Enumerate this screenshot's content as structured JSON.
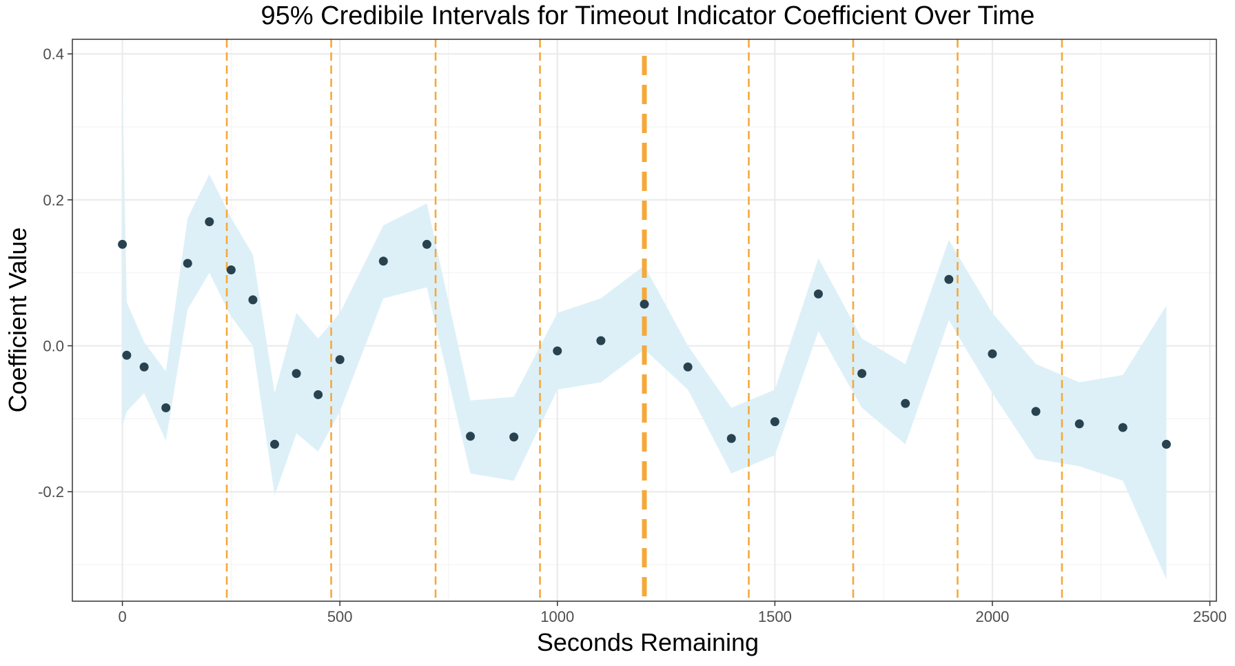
{
  "chart_data": {
    "type": "scatter",
    "title": "95% Credibile Intervals for Timeout Indicator Coefficient Over Time",
    "xlabel": "Seconds Remaining",
    "ylabel": "Coefficient Value",
    "xlim": [
      -115,
      2515
    ],
    "ylim": [
      -0.35,
      0.42
    ],
    "x_ticks": [
      0,
      500,
      1000,
      1500,
      2000,
      2500
    ],
    "x_tick_labels": [
      "0",
      "500",
      "1000",
      "1500",
      "2000",
      "2500"
    ],
    "x_minor_ticks": [
      250,
      750,
      1250,
      1750,
      2250
    ],
    "y_ticks": [
      -0.2,
      0.0,
      0.2,
      0.4
    ],
    "y_tick_labels": [
      "-0.2",
      "0.0",
      "0.2",
      "0.4"
    ],
    "y_minor_ticks": [
      -0.3,
      -0.1,
      0.1,
      0.3
    ],
    "grid": true,
    "interval": {
      "x": [
        0,
        10,
        50,
        100,
        150,
        200,
        250,
        300,
        350,
        400,
        450,
        500,
        600,
        700,
        800,
        900,
        1000,
        1100,
        1200,
        1300,
        1400,
        1500,
        1600,
        1700,
        1800,
        1900,
        2000,
        2100,
        2200,
        2300,
        2400
      ],
      "lower": [
        -0.11,
        -0.09,
        -0.065,
        -0.13,
        0.05,
        0.1,
        0.04,
        0.0,
        -0.205,
        -0.12,
        -0.145,
        -0.09,
        0.065,
        0.08,
        -0.175,
        -0.185,
        -0.06,
        -0.05,
        -0.005,
        -0.06,
        -0.175,
        -0.15,
        0.02,
        -0.085,
        -0.135,
        0.035,
        -0.065,
        -0.155,
        -0.165,
        -0.185,
        -0.32
      ],
      "upper": [
        0.365,
        0.06,
        0.005,
        -0.035,
        0.175,
        0.235,
        0.175,
        0.125,
        -0.065,
        0.045,
        0.01,
        0.045,
        0.165,
        0.195,
        -0.075,
        -0.07,
        0.045,
        0.065,
        0.11,
        0.0,
        -0.085,
        -0.06,
        0.12,
        0.01,
        -0.025,
        0.145,
        0.045,
        -0.025,
        -0.05,
        -0.04,
        0.055
      ]
    },
    "points": {
      "x": [
        0,
        10,
        50,
        100,
        150,
        200,
        250,
        300,
        350,
        400,
        450,
        500,
        600,
        700,
        800,
        900,
        1000,
        1100,
        1200,
        1300,
        1400,
        1500,
        1600,
        1700,
        1800,
        1900,
        2000,
        2100,
        2200,
        2300,
        2400
      ],
      "y": [
        0.139,
        -0.013,
        -0.029,
        -0.085,
        0.113,
        0.17,
        0.104,
        0.063,
        -0.135,
        -0.038,
        -0.067,
        -0.019,
        0.116,
        0.139,
        -0.124,
        -0.125,
        -0.007,
        0.007,
        0.057,
        -0.029,
        -0.127,
        -0.104,
        0.071,
        -0.038,
        -0.079,
        0.091,
        -0.011,
        -0.09,
        -0.107,
        -0.112,
        -0.135
      ]
    },
    "vlines_thin": [
      240,
      480,
      720,
      960,
      1440,
      1680,
      1920,
      2160
    ],
    "vlines_thick": [
      1200
    ],
    "colors": {
      "ribbon": "#ddf0f8",
      "points": "#28434f",
      "vline": "#f5a93a",
      "border": "#333333",
      "grid": "#ebebeb"
    }
  }
}
